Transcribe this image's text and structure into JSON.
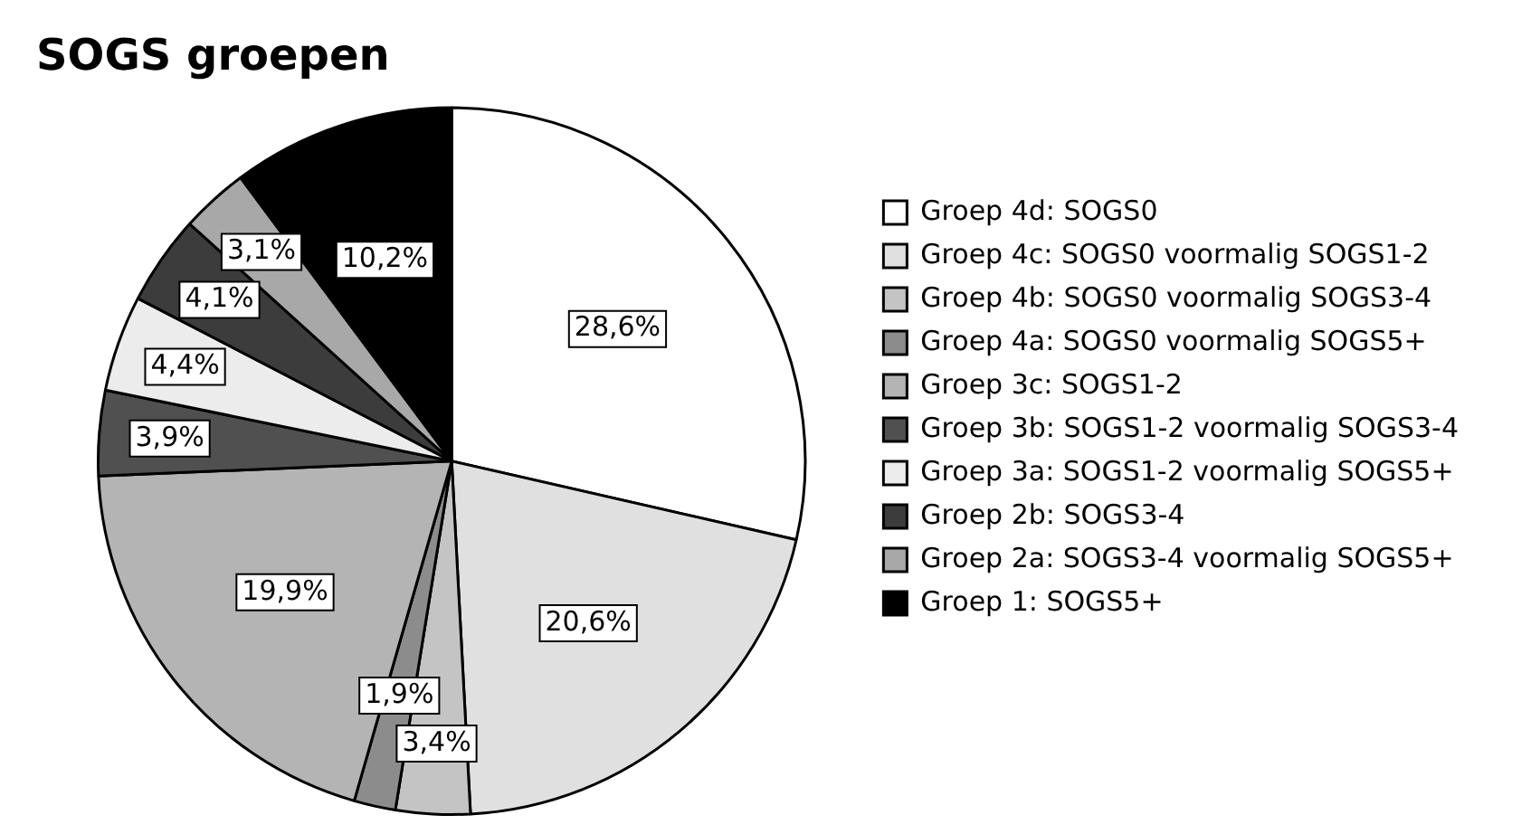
{
  "chart_data": {
    "type": "pie",
    "title": "SOGS groepen",
    "categories": [
      "Groep 4d: SOGS0",
      "Groep 4c: SOGS0 voormalig SOGS1-2",
      "Groep 4b: SOGS0 voormalig SOGS3-4",
      "Groep 4a: SOGS0 voormalig SOGS5+",
      "Groep 3c: SOGS1-2",
      "Groep 3b: SOGS1-2 voormalig SOGS3-4",
      "Groep 3a: SOGS1-2 voormalig SOGS5+",
      "Groep 2b: SOGS3-4",
      "Groep 2a: SOGS3-4 voormalig SOGS5+",
      "Groep 1: SOGS5+"
    ],
    "values": [
      28.6,
      20.6,
      3.4,
      1.9,
      19.9,
      3.9,
      4.4,
      4.1,
      3.1,
      10.2
    ],
    "value_labels": [
      "28,6%",
      "20,6%",
      "3,4%",
      "1,9%",
      "19,9%",
      "3,9%",
      "4,4%",
      "4,1%",
      "3,1%",
      "10,2%"
    ],
    "colors": [
      "#ffffff",
      "#e0e0e0",
      "#c4c4c4",
      "#8c8c8c",
      "#b4b4b4",
      "#505050",
      "#ececec",
      "#3c3c3c",
      "#a8a8a8",
      "#000000"
    ],
    "legend": "right"
  }
}
